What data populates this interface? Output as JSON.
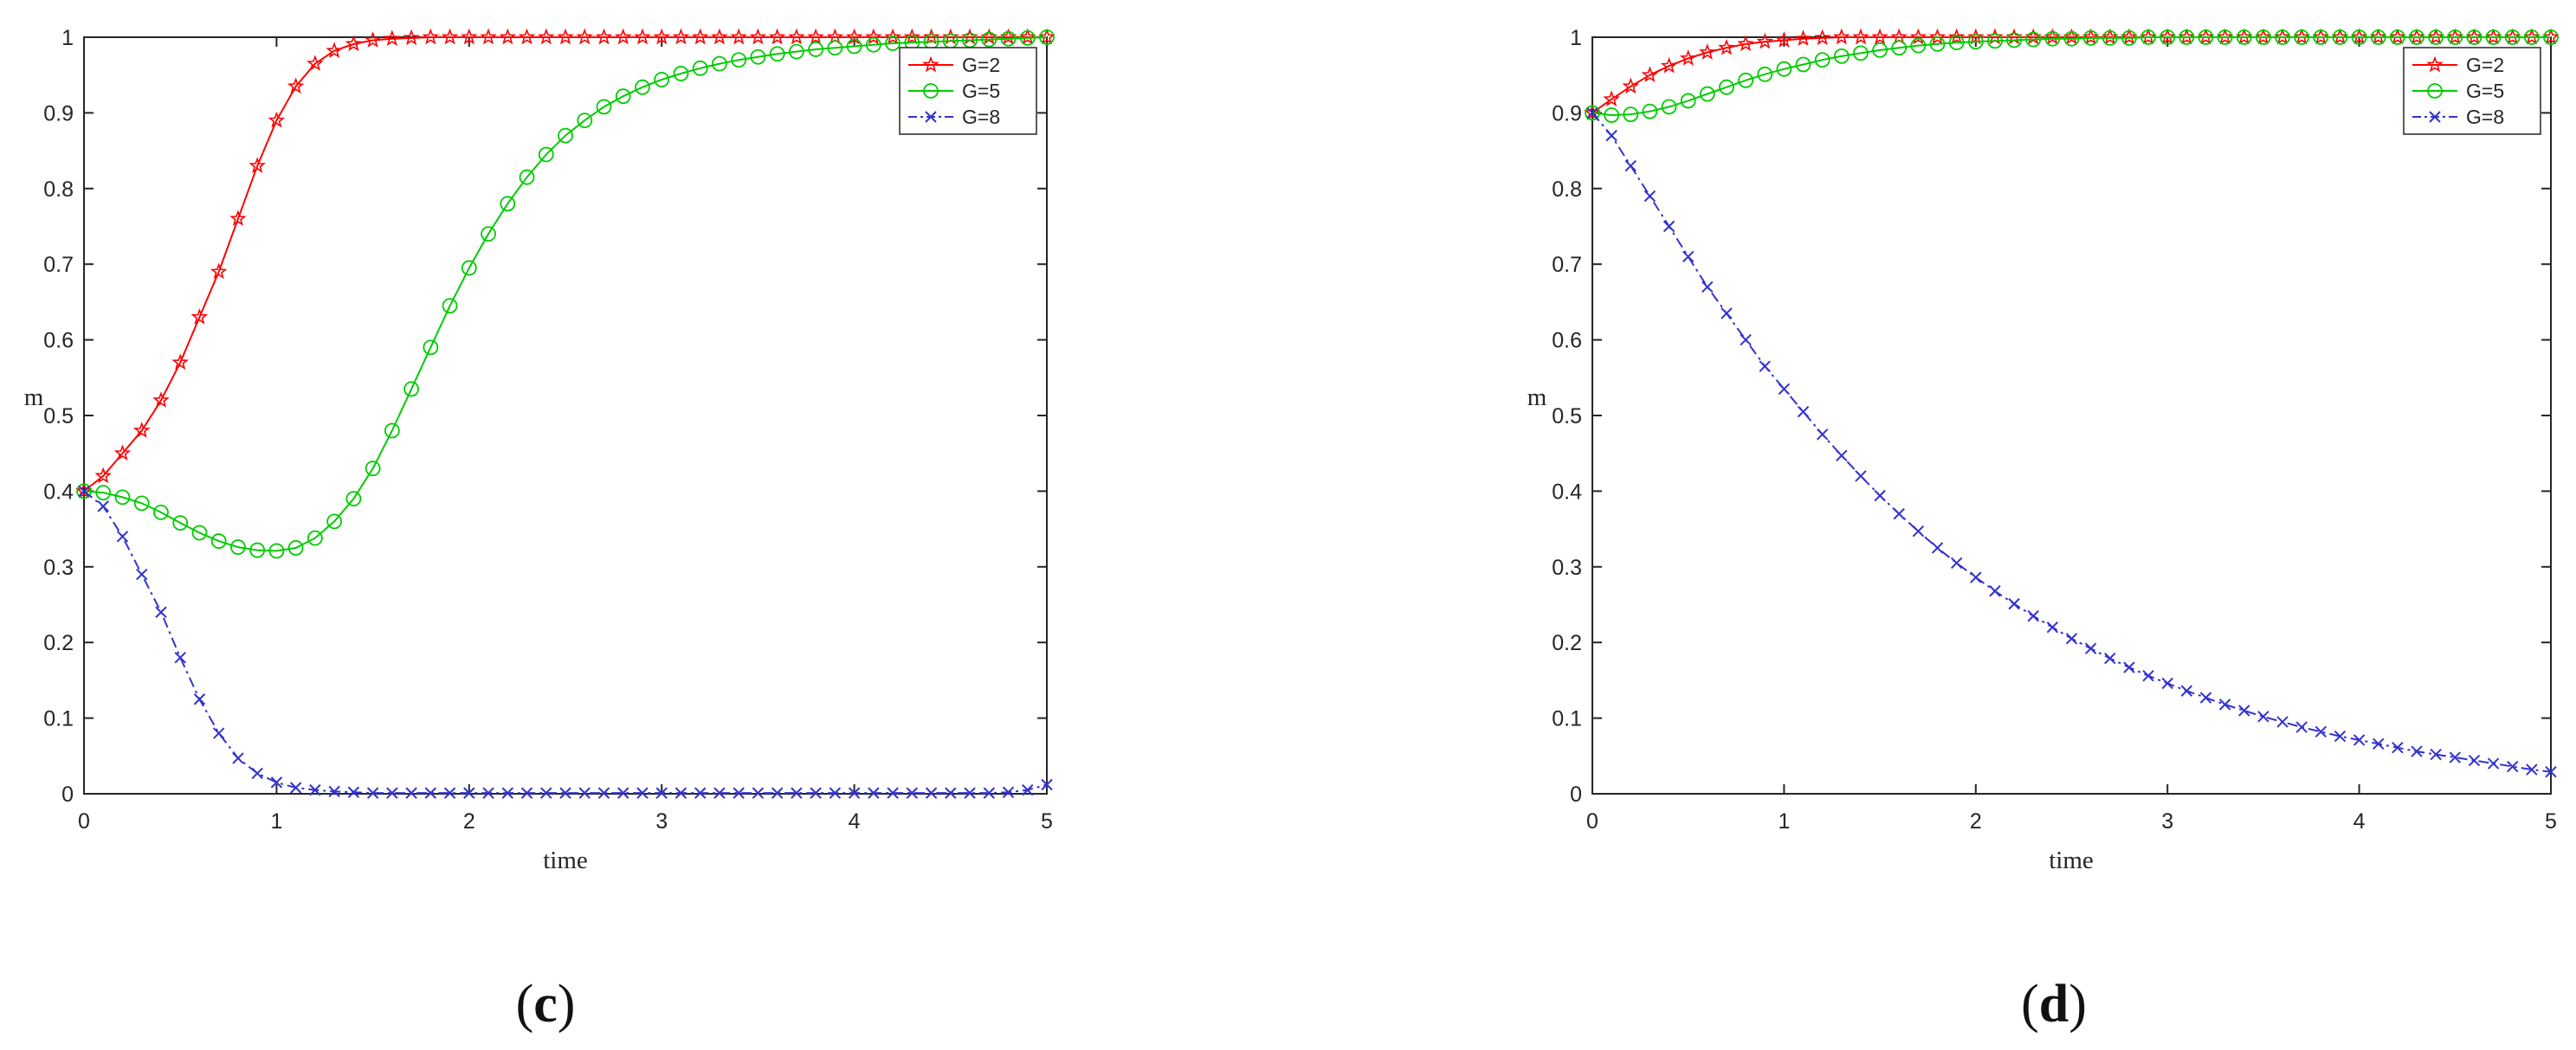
{
  "chart_data": [
    {
      "type": "line",
      "caption_open": "(",
      "caption_letter": "c",
      "caption_close": ")",
      "title": "",
      "xlabel": "time",
      "ylabel": "m",
      "xlim": [
        0,
        5
      ],
      "ylim": [
        0,
        1
      ],
      "xticks": [
        "0",
        "1",
        "2",
        "3",
        "4",
        "5"
      ],
      "yticks": [
        "0",
        "0.1",
        "0.2",
        "0.3",
        "0.4",
        "0.5",
        "0.6",
        "0.7",
        "0.8",
        "0.9",
        "1"
      ],
      "grid": false,
      "legend_position": "top-right",
      "x": [
        0,
        0.1,
        0.2,
        0.3,
        0.4,
        0.5,
        0.6,
        0.7,
        0.8,
        0.9,
        1.0,
        1.1,
        1.2,
        1.3,
        1.4,
        1.5,
        1.6,
        1.7,
        1.8,
        1.9,
        2.0,
        2.1,
        2.2,
        2.3,
        2.4,
        2.5,
        2.6,
        2.7,
        2.8,
        2.9,
        3.0,
        3.1,
        3.2,
        3.3,
        3.4,
        3.5,
        3.6,
        3.7,
        3.8,
        3.9,
        4.0,
        4.1,
        4.2,
        4.3,
        4.4,
        4.5,
        4.6,
        4.7,
        4.8,
        4.9,
        5.0
      ],
      "series": [
        {
          "name": "G=2",
          "color": "#ff0000",
          "marker": "star",
          "line_style": "solid",
          "values": [
            0.4,
            0.42,
            0.45,
            0.48,
            0.52,
            0.57,
            0.63,
            0.69,
            0.76,
            0.83,
            0.89,
            0.935,
            0.965,
            0.982,
            0.991,
            0.996,
            0.998,
            0.999,
            1.0,
            1.0,
            1.0,
            1.0,
            1.0,
            1.0,
            1.0,
            1.0,
            1.0,
            1.0,
            1.0,
            1.0,
            1.0,
            1.0,
            1.0,
            1.0,
            1.0,
            1.0,
            1.0,
            1.0,
            1.0,
            1.0,
            1.0,
            1.0,
            1.0,
            1.0,
            1.0,
            1.0,
            1.0,
            1.0,
            1.0,
            1.0,
            1.0
          ]
        },
        {
          "name": "G=5",
          "color": "#00cc00",
          "marker": "circle",
          "line_style": "solid",
          "values": [
            0.4,
            0.398,
            0.392,
            0.384,
            0.372,
            0.358,
            0.345,
            0.334,
            0.326,
            0.322,
            0.321,
            0.325,
            0.338,
            0.36,
            0.39,
            0.43,
            0.48,
            0.535,
            0.59,
            0.645,
            0.695,
            0.74,
            0.78,
            0.815,
            0.845,
            0.87,
            0.89,
            0.908,
            0.922,
            0.934,
            0.944,
            0.952,
            0.959,
            0.965,
            0.97,
            0.974,
            0.978,
            0.981,
            0.984,
            0.986,
            0.988,
            0.99,
            0.992,
            0.993,
            0.994,
            0.995,
            0.996,
            0.997,
            0.998,
            0.999,
            1.0
          ]
        },
        {
          "name": "G=8",
          "color": "#3333cc",
          "marker": "x",
          "line_style": "dashdot",
          "values": [
            0.4,
            0.38,
            0.34,
            0.29,
            0.24,
            0.18,
            0.125,
            0.08,
            0.047,
            0.027,
            0.015,
            0.008,
            0.005,
            0.003,
            0.002,
            0.001,
            0.001,
            0.001,
            0.001,
            0.001,
            0.001,
            0.001,
            0.001,
            0.001,
            0.001,
            0.001,
            0.001,
            0.001,
            0.001,
            0.001,
            0.001,
            0.001,
            0.001,
            0.001,
            0.001,
            0.001,
            0.001,
            0.001,
            0.001,
            0.001,
            0.001,
            0.001,
            0.001,
            0.001,
            0.001,
            0.001,
            0.001,
            0.001,
            0.002,
            0.005,
            0.012
          ]
        }
      ]
    },
    {
      "type": "line",
      "caption_open": "(",
      "caption_letter": "d",
      "caption_close": ")",
      "title": "",
      "xlabel": "time",
      "ylabel": "m",
      "xlim": [
        0,
        5
      ],
      "ylim": [
        0,
        1
      ],
      "xticks": [
        "0",
        "1",
        "2",
        "3",
        "4",
        "5"
      ],
      "yticks": [
        "0",
        "0.1",
        "0.2",
        "0.3",
        "0.4",
        "0.5",
        "0.6",
        "0.7",
        "0.8",
        "0.9",
        "1"
      ],
      "grid": false,
      "legend_position": "top-right",
      "x": [
        0,
        0.1,
        0.2,
        0.3,
        0.4,
        0.5,
        0.6,
        0.7,
        0.8,
        0.9,
        1.0,
        1.1,
        1.2,
        1.3,
        1.4,
        1.5,
        1.6,
        1.7,
        1.8,
        1.9,
        2.0,
        2.1,
        2.2,
        2.3,
        2.4,
        2.5,
        2.6,
        2.7,
        2.8,
        2.9,
        3.0,
        3.1,
        3.2,
        3.3,
        3.4,
        3.5,
        3.6,
        3.7,
        3.8,
        3.9,
        4.0,
        4.1,
        4.2,
        4.3,
        4.4,
        4.5,
        4.6,
        4.7,
        4.8,
        4.9,
        5.0
      ],
      "series": [
        {
          "name": "G=2",
          "color": "#ff0000",
          "marker": "star",
          "line_style": "solid",
          "values": [
            0.9,
            0.918,
            0.935,
            0.95,
            0.962,
            0.972,
            0.98,
            0.986,
            0.991,
            0.994,
            0.996,
            0.998,
            0.999,
            1.0,
            1.0,
            1.0,
            1.0,
            1.0,
            1.0,
            1.0,
            1.0,
            1.0,
            1.0,
            1.0,
            1.0,
            1.0,
            1.0,
            1.0,
            1.0,
            1.0,
            1.0,
            1.0,
            1.0,
            1.0,
            1.0,
            1.0,
            1.0,
            1.0,
            1.0,
            1.0,
            1.0,
            1.0,
            1.0,
            1.0,
            1.0,
            1.0,
            1.0,
            1.0,
            1.0,
            1.0,
            1.0
          ]
        },
        {
          "name": "G=5",
          "color": "#00cc00",
          "marker": "circle",
          "line_style": "solid",
          "values": [
            0.9,
            0.897,
            0.898,
            0.902,
            0.908,
            0.916,
            0.925,
            0.934,
            0.943,
            0.951,
            0.958,
            0.964,
            0.97,
            0.975,
            0.979,
            0.983,
            0.986,
            0.989,
            0.991,
            0.993,
            0.994,
            0.995,
            0.996,
            0.997,
            0.998,
            0.998,
            0.999,
            0.999,
            0.999,
            1.0,
            1.0,
            1.0,
            1.0,
            1.0,
            1.0,
            1.0,
            1.0,
            1.0,
            1.0,
            1.0,
            1.0,
            1.0,
            1.0,
            1.0,
            1.0,
            1.0,
            1.0,
            1.0,
            1.0,
            1.0,
            1.0
          ]
        },
        {
          "name": "G=8",
          "color": "#3333cc",
          "marker": "x",
          "line_style": "dashdot",
          "values": [
            0.9,
            0.87,
            0.83,
            0.79,
            0.75,
            0.71,
            0.67,
            0.635,
            0.6,
            0.565,
            0.535,
            0.505,
            0.475,
            0.447,
            0.42,
            0.394,
            0.37,
            0.347,
            0.325,
            0.305,
            0.286,
            0.268,
            0.251,
            0.235,
            0.22,
            0.205,
            0.192,
            0.179,
            0.167,
            0.156,
            0.146,
            0.136,
            0.127,
            0.118,
            0.11,
            0.102,
            0.095,
            0.088,
            0.082,
            0.076,
            0.071,
            0.066,
            0.061,
            0.056,
            0.052,
            0.048,
            0.044,
            0.04,
            0.036,
            0.032,
            0.029
          ]
        }
      ]
    }
  ]
}
